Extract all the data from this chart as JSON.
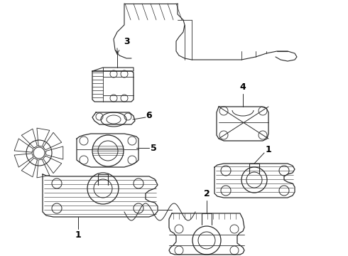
{
  "background_color": "#ffffff",
  "line_color": "#2a2a2a",
  "label_color": "#000000",
  "figsize": [
    4.9,
    3.6
  ],
  "dpi": 100,
  "xlim": [
    0,
    490
  ],
  "ylim": [
    0,
    360
  ]
}
